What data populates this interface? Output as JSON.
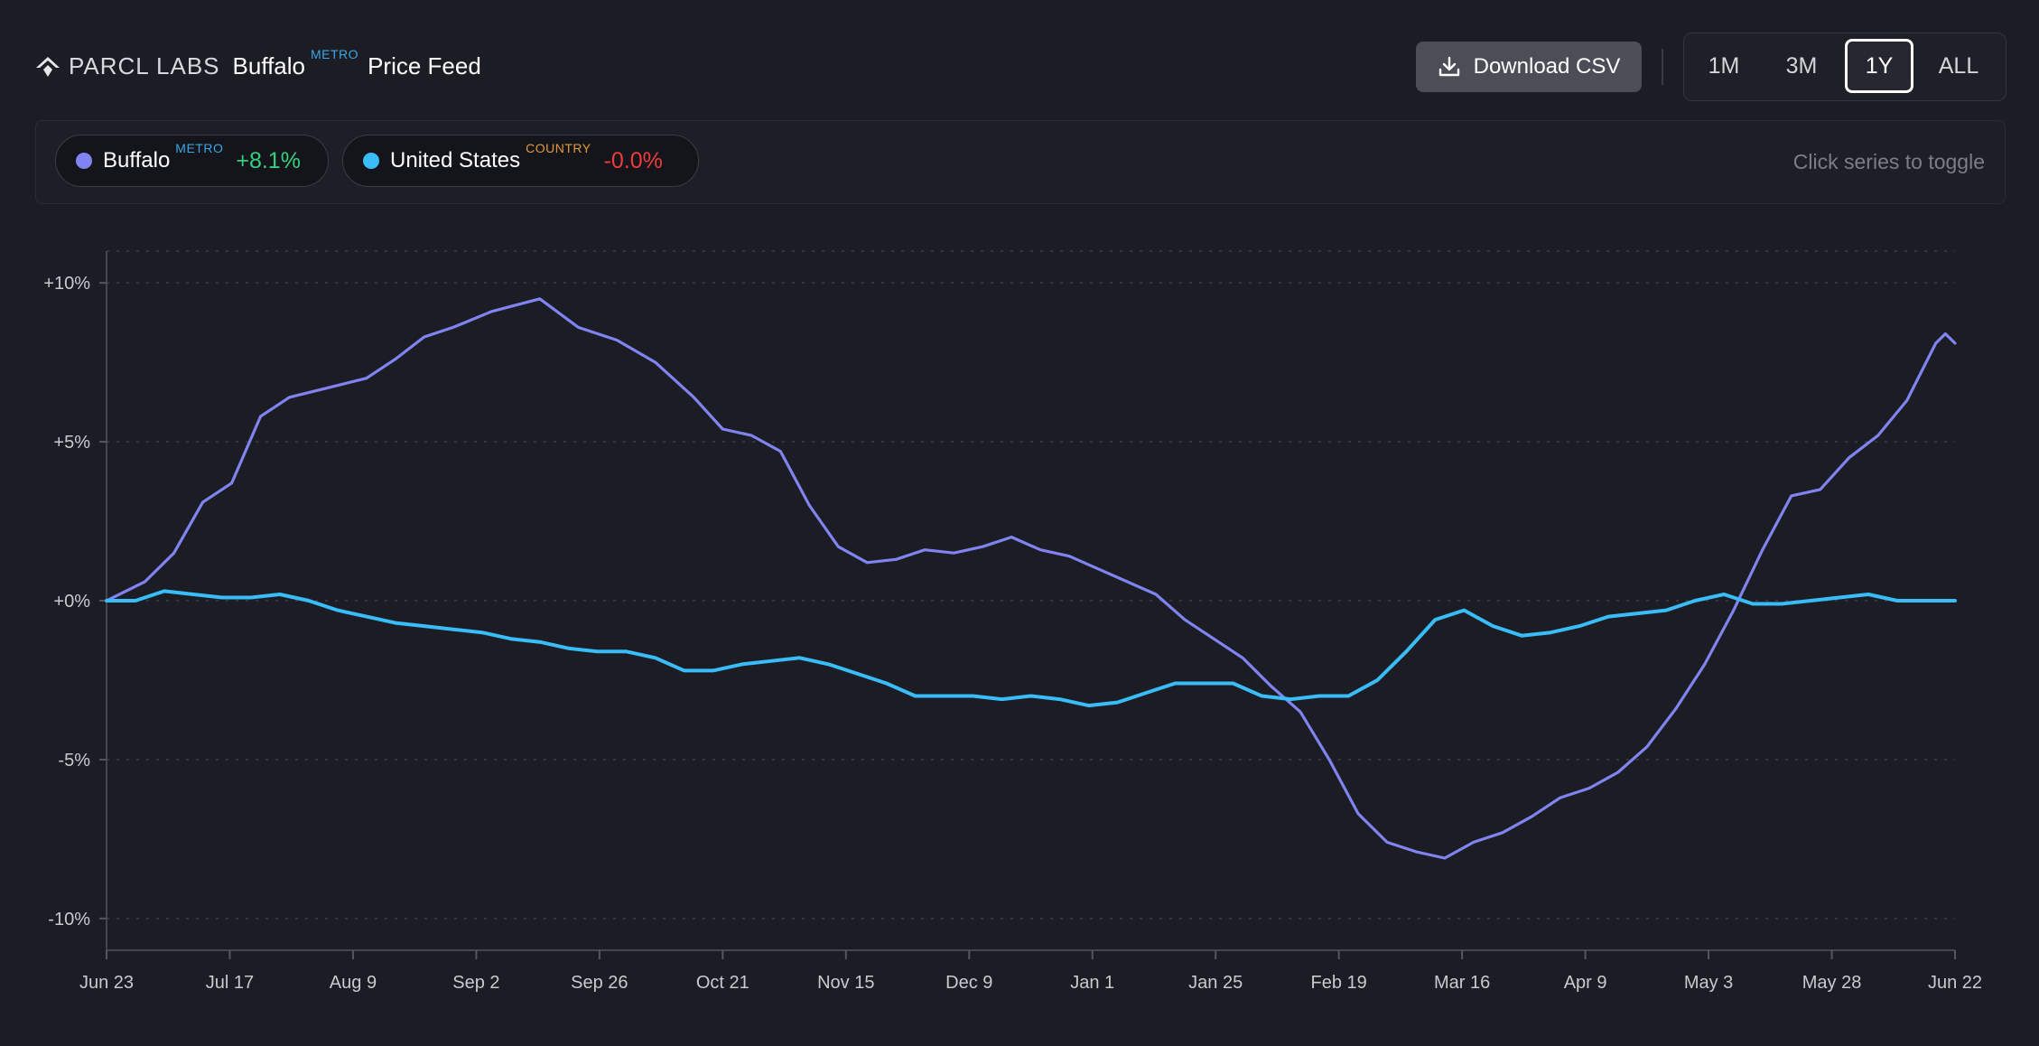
{
  "header": {
    "logo_text": "PARCL LABS",
    "metro_name": "Buffalo",
    "metro_tag": "METRO",
    "feed_title": "Price Feed",
    "download_label": "Download CSV",
    "ranges": [
      "1M",
      "3M",
      "1Y",
      "ALL"
    ],
    "active_range": "1Y"
  },
  "legend": {
    "toggle_hint": "Click series to toggle",
    "items": [
      {
        "name": "Buffalo",
        "tag": "METRO",
        "change": "+8.1%",
        "color": "#7f84f0",
        "change_color": "#35d07f"
      },
      {
        "name": "United States",
        "tag": "COUNTRY",
        "change": "-0.0%",
        "color": "#38bdf8",
        "change_color": "#ef3b3b"
      }
    ]
  },
  "chart_data": {
    "type": "line",
    "x": [
      "Jun 23",
      "Jul 17",
      "Aug 9",
      "Sep 2",
      "Sep 26",
      "Oct 21",
      "Nov 15",
      "Dec 9",
      "Jan 1",
      "Jan 25",
      "Feb 19",
      "Mar 16",
      "Apr 9",
      "May 3",
      "May 28",
      "Jun 22"
    ],
    "ylim": [
      -11,
      11
    ],
    "yticks": [
      "+10%",
      "+5%",
      "+0%",
      "-5%",
      "-10%"
    ],
    "ytick_values": [
      10,
      5,
      0,
      -5,
      -10
    ],
    "grid": true,
    "series": [
      {
        "name": "Buffalo",
        "color": "#7f84f0",
        "values": [
          [
            0,
            0.0
          ],
          [
            4,
            0.6
          ],
          [
            7,
            1.5
          ],
          [
            10,
            3.1
          ],
          [
            13,
            3.7
          ],
          [
            16,
            5.8
          ],
          [
            19,
            6.4
          ],
          [
            23,
            6.7
          ],
          [
            27,
            7.0
          ],
          [
            30,
            7.6
          ],
          [
            33,
            8.3
          ],
          [
            36,
            8.6
          ],
          [
            40,
            9.1
          ],
          [
            45,
            9.5
          ],
          [
            49,
            8.6
          ],
          [
            53,
            8.2
          ],
          [
            57,
            7.5
          ],
          [
            61,
            6.4
          ],
          [
            64,
            5.4
          ],
          [
            67,
            5.2
          ],
          [
            70,
            4.7
          ],
          [
            73,
            3.0
          ],
          [
            76,
            1.7
          ],
          [
            79,
            1.2
          ],
          [
            82,
            1.3
          ],
          [
            85,
            1.6
          ],
          [
            88,
            1.5
          ],
          [
            91,
            1.7
          ],
          [
            94,
            2.0
          ],
          [
            97,
            1.6
          ],
          [
            100,
            1.4
          ],
          [
            103,
            1.0
          ],
          [
            106,
            0.6
          ],
          [
            109,
            0.2
          ],
          [
            112,
            -0.6
          ],
          [
            115,
            -1.2
          ],
          [
            118,
            -1.8
          ],
          [
            121,
            -2.7
          ],
          [
            124,
            -3.5
          ],
          [
            127,
            -5.0
          ],
          [
            130,
            -6.7
          ],
          [
            133,
            -7.6
          ],
          [
            136,
            -7.9
          ],
          [
            139,
            -8.1
          ],
          [
            142,
            -7.6
          ],
          [
            145,
            -7.3
          ],
          [
            148,
            -6.8
          ],
          [
            151,
            -6.2
          ],
          [
            154,
            -5.9
          ],
          [
            157,
            -5.4
          ],
          [
            160,
            -4.6
          ],
          [
            163,
            -3.4
          ],
          [
            166,
            -2.0
          ],
          [
            169,
            -0.3
          ],
          [
            172,
            1.6
          ],
          [
            175,
            3.3
          ],
          [
            178,
            3.5
          ],
          [
            181,
            4.5
          ],
          [
            184,
            5.2
          ],
          [
            187,
            6.3
          ],
          [
            189,
            7.5
          ],
          [
            190,
            8.1
          ],
          [
            191,
            8.4
          ],
          [
            192,
            8.1
          ]
        ]
      },
      {
        "name": "United States",
        "color": "#38bdf8",
        "values": [
          [
            0,
            0.0
          ],
          [
            3,
            0.0
          ],
          [
            6,
            0.3
          ],
          [
            9,
            0.2
          ],
          [
            12,
            0.1
          ],
          [
            15,
            0.1
          ],
          [
            18,
            0.2
          ],
          [
            21,
            0.0
          ],
          [
            24,
            -0.3
          ],
          [
            27,
            -0.5
          ],
          [
            30,
            -0.7
          ],
          [
            33,
            -0.8
          ],
          [
            36,
            -0.9
          ],
          [
            39,
            -1.0
          ],
          [
            42,
            -1.2
          ],
          [
            45,
            -1.3
          ],
          [
            48,
            -1.5
          ],
          [
            51,
            -1.6
          ],
          [
            54,
            -1.6
          ],
          [
            57,
            -1.8
          ],
          [
            60,
            -2.2
          ],
          [
            63,
            -2.2
          ],
          [
            66,
            -2.0
          ],
          [
            69,
            -1.9
          ],
          [
            72,
            -1.8
          ],
          [
            75,
            -2.0
          ],
          [
            78,
            -2.3
          ],
          [
            81,
            -2.6
          ],
          [
            84,
            -3.0
          ],
          [
            87,
            -3.0
          ],
          [
            90,
            -3.0
          ],
          [
            93,
            -3.1
          ],
          [
            96,
            -3.0
          ],
          [
            99,
            -3.1
          ],
          [
            102,
            -3.3
          ],
          [
            105,
            -3.2
          ],
          [
            108,
            -2.9
          ],
          [
            111,
            -2.6
          ],
          [
            114,
            -2.6
          ],
          [
            117,
            -2.6
          ],
          [
            120,
            -3.0
          ],
          [
            123,
            -3.1
          ],
          [
            126,
            -3.0
          ],
          [
            129,
            -3.0
          ],
          [
            132,
            -2.5
          ],
          [
            135,
            -1.6
          ],
          [
            138,
            -0.6
          ],
          [
            141,
            -0.3
          ],
          [
            144,
            -0.8
          ],
          [
            147,
            -1.1
          ],
          [
            150,
            -1.0
          ],
          [
            153,
            -0.8
          ],
          [
            156,
            -0.5
          ],
          [
            159,
            -0.4
          ],
          [
            162,
            -0.3
          ],
          [
            165,
            0.0
          ],
          [
            168,
            0.2
          ],
          [
            171,
            -0.1
          ],
          [
            174,
            -0.1
          ],
          [
            177,
            0.0
          ],
          [
            180,
            0.1
          ],
          [
            183,
            0.2
          ],
          [
            186,
            0.0
          ],
          [
            189,
            0.0
          ],
          [
            192,
            0.0
          ]
        ]
      }
    ]
  }
}
